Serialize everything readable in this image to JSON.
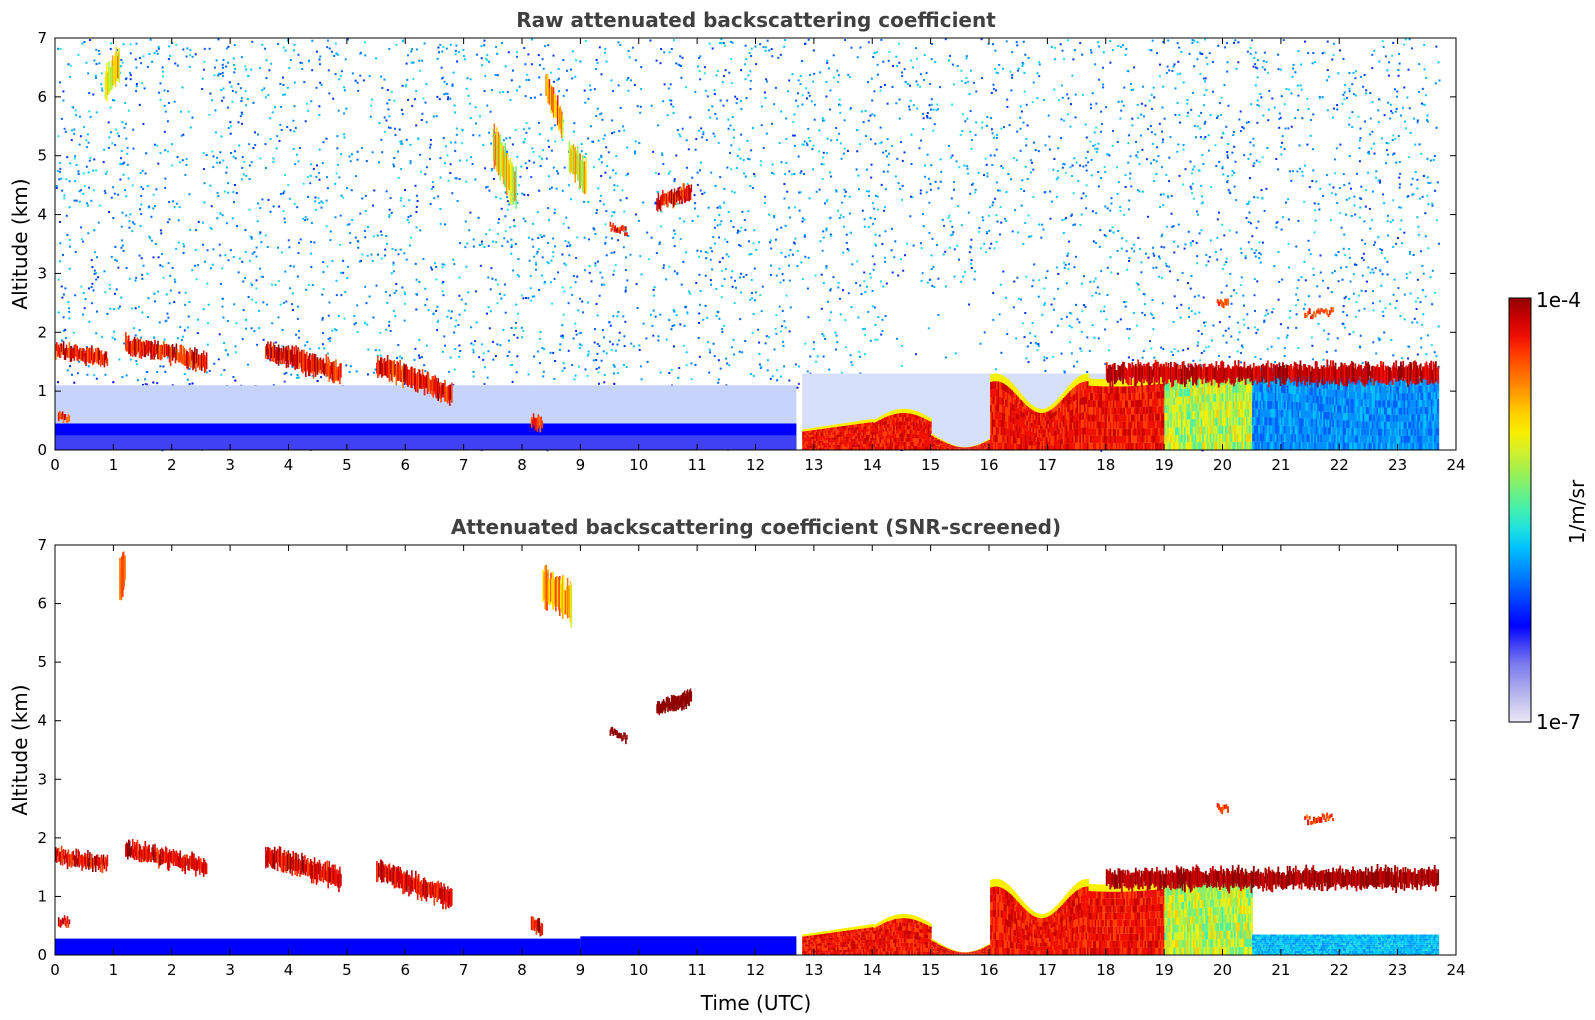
{
  "chart_data": [
    {
      "type": "heatmap",
      "title": "Raw attenuated backscattering coefficient",
      "xlabel": "",
      "ylabel": "Altitude (km)",
      "xlim": [
        0,
        24
      ],
      "ylim": [
        0,
        7
      ],
      "x_ticks": [
        "0",
        "1",
        "2",
        "3",
        "4",
        "5",
        "6",
        "7",
        "8",
        "9",
        "10",
        "11",
        "12",
        "13",
        "14",
        "15",
        "16",
        "17",
        "18",
        "19",
        "20",
        "21",
        "22",
        "23",
        "24"
      ],
      "y_ticks": [
        "0",
        "1",
        "2",
        "3",
        "4",
        "5",
        "6",
        "7"
      ],
      "data_end_hour": 23.7,
      "features": [
        {
          "name": "noise-background",
          "t0": 0,
          "t1": 23.7,
          "z0": 0,
          "z1": 7,
          "level": "low-noise"
        },
        {
          "name": "surface-layer-morning",
          "t0": 0,
          "t1": 12.7,
          "z0": 0,
          "z1": 0.45,
          "level": "blue"
        },
        {
          "name": "boundary-layer-top-morning",
          "t0": 0,
          "t1": 7,
          "z_start": 1.7,
          "z_end": 0.95,
          "level": "high"
        },
        {
          "name": "cirrus-ice-7.5-9",
          "t0": 7.5,
          "t1": 9.1,
          "z0": 4.3,
          "z1": 6.8,
          "level": "mixed"
        },
        {
          "name": "cloud-4.3km",
          "t0": 10.3,
          "t1": 10.9,
          "z0": 4.15,
          "z1": 4.5,
          "level": "high"
        },
        {
          "name": "convective-bl-afternoon",
          "t0": 12.8,
          "t1": 23.7,
          "z0": 0,
          "z1": 1.7,
          "level": "high"
        },
        {
          "name": "cloud-top-evening",
          "t0": 18,
          "t1": 23.7,
          "z0": 1.1,
          "z1": 1.6,
          "level": "high"
        }
      ]
    },
    {
      "type": "heatmap",
      "title": "Attenuated backscattering coefficient (SNR-screened)",
      "xlabel": "Time (UTC)",
      "ylabel": "Altitude (km)",
      "xlim": [
        0,
        24
      ],
      "ylim": [
        0,
        7
      ],
      "x_ticks": [
        "0",
        "1",
        "2",
        "3",
        "4",
        "5",
        "6",
        "7",
        "8",
        "9",
        "10",
        "11",
        "12",
        "13",
        "14",
        "15",
        "16",
        "17",
        "18",
        "19",
        "20",
        "21",
        "22",
        "23",
        "24"
      ],
      "y_ticks": [
        "0",
        "1",
        "2",
        "3",
        "4",
        "5",
        "6",
        "7"
      ],
      "data_end_hour": 23.7
    }
  ],
  "colorbar": {
    "label": "1/m/sr",
    "max_label": "1e-4",
    "min_label": "1e-7",
    "colors": [
      "#ece8f6",
      "#c6c6f0",
      "#a0a0ec",
      "#7b7bee",
      "#4040f5",
      "#0000ff",
      "#0030ff",
      "#0060ff",
      "#0090ff",
      "#00c0ff",
      "#1ee0e0",
      "#40f0b0",
      "#70f080",
      "#a0f050",
      "#d0f030",
      "#f8f000",
      "#ffd000",
      "#ffa000",
      "#ff7000",
      "#ff4000",
      "#f01000",
      "#c80000",
      "#900000"
    ]
  },
  "colors": {
    "frame": "#000000",
    "title": "#404040"
  }
}
